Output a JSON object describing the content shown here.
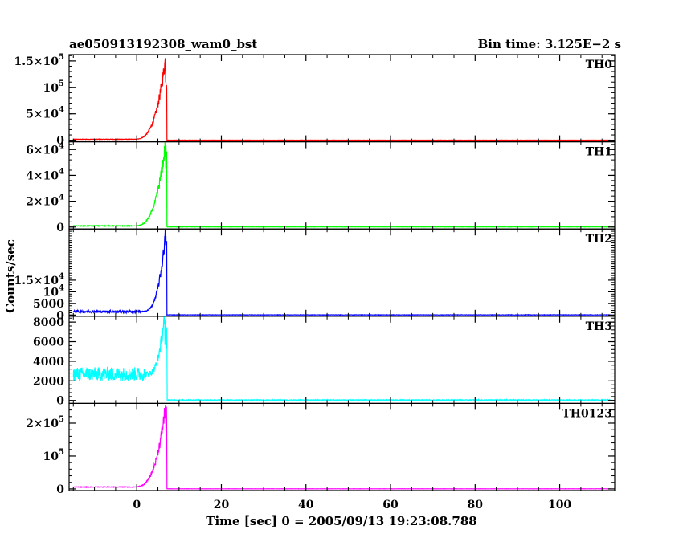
{
  "chart_data": {
    "type": "line",
    "title": "ae050913192308_wam0_bst",
    "subtitle": "Bin time: 3.125E−2 s",
    "xlabel": "Time [sec] 0 = 2005/09/13 19:23:08.788",
    "ylabel": "Counts/sec",
    "xlim": [
      -16,
      113
    ],
    "x_ticks": [
      0,
      20,
      40,
      60,
      80,
      100
    ],
    "x_tick_labels": [
      "0",
      "20",
      "40",
      "60",
      "80",
      "100"
    ],
    "grid": false,
    "panels": [
      {
        "name": "TH0",
        "color": "#ff0000",
        "ylim": [
          -3000,
          162000
        ],
        "ticks": [
          {
            "value": 0,
            "label": "0",
            "exp": ""
          },
          {
            "value": 50000,
            "label": "5×10",
            "exp": "4"
          },
          {
            "value": 100000,
            "label": "10",
            "exp": "5"
          },
          {
            "value": 150000,
            "label": "1.5×10",
            "exp": "5"
          }
        ],
        "baseline": 1800,
        "noise": 400,
        "rise_start": -1,
        "peak_time": 6.8,
        "peak": 155000,
        "end_time": 7.1,
        "tail": 300
      },
      {
        "name": "TH1",
        "color": "#00ff00",
        "ylim": [
          -1500,
          66000
        ],
        "ticks": [
          {
            "value": 0,
            "label": "0",
            "exp": ""
          },
          {
            "value": 20000,
            "label": "2×10",
            "exp": "4"
          },
          {
            "value": 40000,
            "label": "4×10",
            "exp": "4"
          },
          {
            "value": 60000,
            "label": "6×10",
            "exp": "4"
          }
        ],
        "baseline": 900,
        "noise": 250,
        "rise_start": -1,
        "peak_time": 6.8,
        "peak": 64000,
        "end_time": 7.1,
        "tail": 200
      },
      {
        "name": "TH2",
        "color": "#0000ff",
        "ylim": [
          -500,
          37000
        ],
        "ticks": [
          {
            "value": 0,
            "label": "0",
            "exp": ""
          },
          {
            "value": 5000,
            "label": "5000",
            "exp": ""
          },
          {
            "value": 10000,
            "label": "10",
            "exp": "4"
          },
          {
            "value": 15000,
            "label": "1.5×10",
            "exp": "4"
          }
        ],
        "baseline": 1500,
        "noise": 500,
        "rise_start": 1,
        "peak_time": 6.8,
        "peak": 35000,
        "end_time": 7.1,
        "tail": 150
      },
      {
        "name": "TH3",
        "color": "#00ffff",
        "ylim": [
          -300,
          8600
        ],
        "ticks": [
          {
            "value": 0,
            "label": "0",
            "exp": ""
          },
          {
            "value": 2000,
            "label": "2000",
            "exp": ""
          },
          {
            "value": 4000,
            "label": "4000",
            "exp": ""
          },
          {
            "value": 6000,
            "label": "6000",
            "exp": ""
          },
          {
            "value": 8000,
            "label": "8000",
            "exp": ""
          }
        ],
        "baseline": 2700,
        "noise": 700,
        "rise_start": 2,
        "peak_time": 6.5,
        "peak": 8500,
        "end_time": 7.2,
        "tail": 80
      },
      {
        "name": "TH0123",
        "color": "#ff00ff",
        "ylim": [
          -5000,
          260000
        ],
        "ticks": [
          {
            "value": 0,
            "label": "0",
            "exp": ""
          },
          {
            "value": 100000,
            "label": "10",
            "exp": "5"
          },
          {
            "value": 200000,
            "label": "2×10",
            "exp": "5"
          }
        ],
        "baseline": 6000,
        "noise": 900,
        "rise_start": -1,
        "peak_time": 6.8,
        "peak": 250000,
        "end_time": 7.1,
        "tail": 600
      }
    ]
  }
}
